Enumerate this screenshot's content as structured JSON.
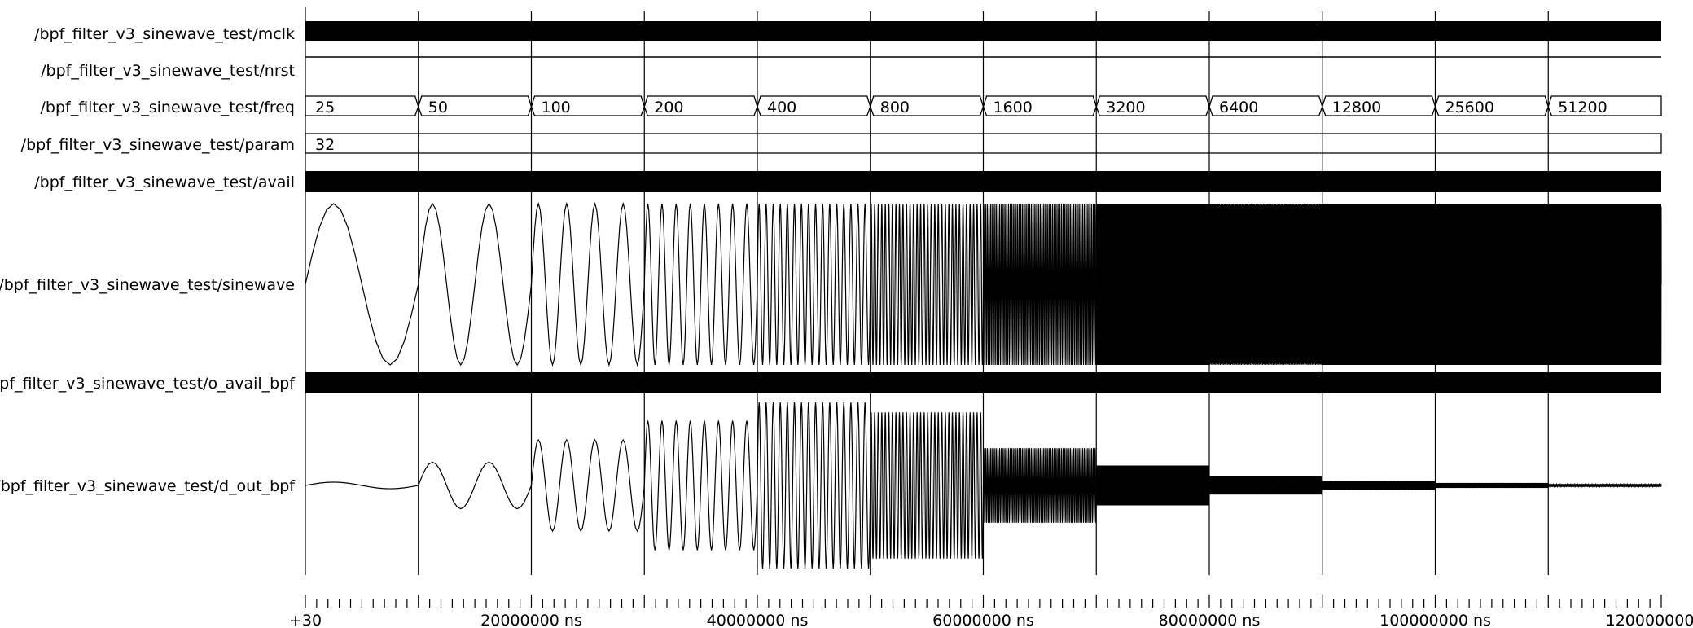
{
  "chart_data": {
    "type": "line",
    "title": "",
    "time_axis": {
      "unit": "ns",
      "min": 0,
      "max": 120000000,
      "major_tick_step": 10000000,
      "minor_tick_step": 1000000,
      "tick_labels": [
        {
          "t": 0,
          "label": "+30"
        },
        {
          "t": 20000000,
          "label": "20000000 ns"
        },
        {
          "t": 40000000,
          "label": "40000000 ns"
        },
        {
          "t": 60000000,
          "label": "60000000 ns"
        },
        {
          "t": 80000000,
          "label": "80000000 ns"
        },
        {
          "t": 100000000,
          "label": "100000000 ns"
        },
        {
          "t": 120000000,
          "label": "120000000 ns"
        }
      ]
    },
    "signals": [
      {
        "name": "/bpf_filter_v3_sinewave_test/mclk",
        "kind": "clock"
      },
      {
        "name": "/bpf_filter_v3_sinewave_test/nrst",
        "kind": "high"
      },
      {
        "name": "/bpf_filter_v3_sinewave_test/freq",
        "kind": "bus",
        "segments": [
          {
            "start": 0,
            "value": "25"
          },
          {
            "start": 10000000,
            "value": "50"
          },
          {
            "start": 20000000,
            "value": "100"
          },
          {
            "start": 30000000,
            "value": "200"
          },
          {
            "start": 40000000,
            "value": "400"
          },
          {
            "start": 50000000,
            "value": "800"
          },
          {
            "start": 60000000,
            "value": "1600"
          },
          {
            "start": 70000000,
            "value": "3200"
          },
          {
            "start": 80000000,
            "value": "6400"
          },
          {
            "start": 90000000,
            "value": "12800"
          },
          {
            "start": 100000000,
            "value": "25600"
          },
          {
            "start": 110000000,
            "value": "51200"
          }
        ]
      },
      {
        "name": "/bpf_filter_v3_sinewave_test/param",
        "kind": "bus",
        "segments": [
          {
            "start": 0,
            "value": "32"
          }
        ]
      },
      {
        "name": "/bpf_filter_v3_sinewave_test/avail",
        "kind": "clock"
      },
      {
        "name": "/bpf_filter_v3_sinewave_test/sinewave",
        "kind": "analog",
        "segment_cycles": [
          1,
          2,
          4,
          8,
          16,
          32,
          64,
          128,
          256,
          512,
          1024,
          2048
        ],
        "amplitude": [
          1,
          1,
          1,
          1,
          1,
          1,
          1,
          1,
          1,
          1,
          1,
          1
        ]
      },
      {
        "name": "/bpf_filter_v3_sinewave_test/o_avail_bpf",
        "kind": "clock"
      },
      {
        "name": "/bpf_filter_v3_sinewave_test/d_out_bpf",
        "kind": "analog",
        "segment_cycles": [
          1,
          2,
          4,
          8,
          16,
          32,
          64,
          128,
          256,
          512,
          1024,
          2048
        ],
        "amplitude": [
          0.04,
          0.28,
          0.55,
          0.78,
          1.0,
          0.88,
          0.45,
          0.24,
          0.11,
          0.05,
          0.03,
          0.015
        ]
      }
    ]
  },
  "colors": {
    "background": "#ffffff",
    "trace": "#000000",
    "grid": "#000000"
  }
}
